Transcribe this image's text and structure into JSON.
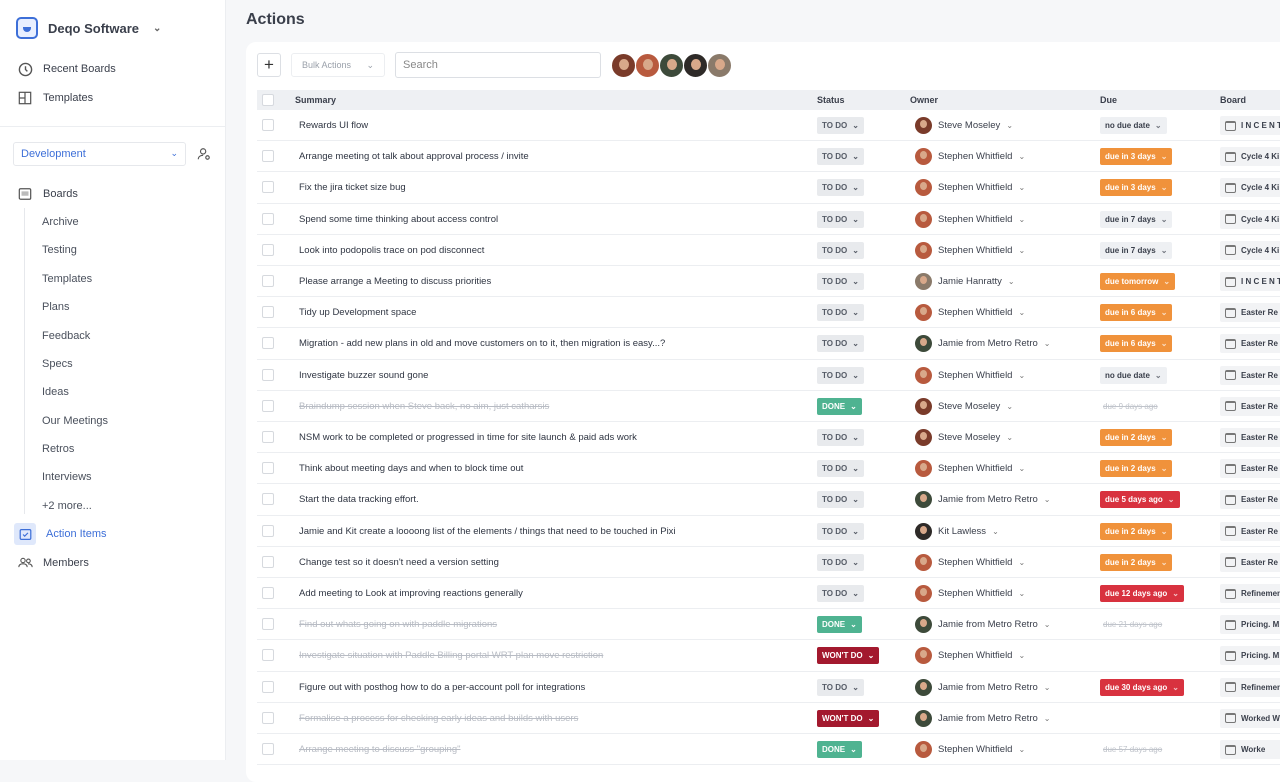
{
  "sidebar": {
    "workspace": "Deqo Software",
    "top_items": [
      {
        "label": "Recent Boards",
        "icon": "clock-icon"
      },
      {
        "label": "Templates",
        "icon": "layout-icon"
      }
    ],
    "team_select": "Development",
    "boards_label": "Boards",
    "board_items": [
      "Archive",
      "Testing",
      "Templates",
      "Plans",
      "Feedback",
      "Specs",
      "Ideas",
      "Our Meetings",
      "Retros",
      "Interviews",
      "+2 more..."
    ],
    "action_items": "Action Items",
    "members": "Members"
  },
  "page": {
    "title": "Actions"
  },
  "toolbar": {
    "add": "+",
    "bulk_actions": "Bulk Actions",
    "search_placeholder": "Search"
  },
  "columns": {
    "summary": "Summary",
    "status": "Status",
    "owner": "Owner",
    "due": "Due",
    "board": "Board"
  },
  "colors": {
    "accent": "#3d6fd8",
    "done": "#4fb391",
    "wont": "#a3192e",
    "due_soon": "#f0923b",
    "overdue": "#d8323f"
  },
  "rows": [
    {
      "summary": "Rewards UI flow",
      "status": "TO DO",
      "owner": "Steve Moseley",
      "due": "no due date",
      "due_type": "grey",
      "board": "I N C E N T",
      "done": false
    },
    {
      "summary": "Arrange meeting ot talk about approval process / invite",
      "status": "TO DO",
      "owner": "Stephen Whitfield",
      "due": "due in 3 days",
      "due_type": "orange",
      "board": "Cycle 4 Ki",
      "done": false
    },
    {
      "summary": "Fix the jira ticket size bug",
      "status": "TO DO",
      "owner": "Stephen Whitfield",
      "due": "due in 3 days",
      "due_type": "orange",
      "board": "Cycle 4 Ki",
      "done": false
    },
    {
      "summary": "Spend some time thinking about access control",
      "status": "TO DO",
      "owner": "Stephen Whitfield",
      "due": "due in 7 days",
      "due_type": "grey",
      "board": "Cycle 4 Ki",
      "done": false
    },
    {
      "summary": "Look into podopolis trace on pod disconnect",
      "status": "TO DO",
      "owner": "Stephen Whitfield",
      "due": "due in 7 days",
      "due_type": "grey",
      "board": "Cycle 4 Ki",
      "done": false
    },
    {
      "summary": "Please arrange a Meeting to discuss priorities",
      "status": "TO DO",
      "owner": "Jamie Hanratty",
      "due": "due tomorrow",
      "due_type": "orange",
      "board": "I N C E N T",
      "done": false
    },
    {
      "summary": "Tidy up Development space",
      "status": "TO DO",
      "owner": "Stephen Whitfield",
      "due": "due in 6 days",
      "due_type": "orange",
      "board": "Easter Re",
      "done": false
    },
    {
      "summary": "Migration - add new plans in old and move customers on to it, then migration is easy...?",
      "status": "TO DO",
      "owner": "Jamie from Metro Retro",
      "due": "due in 6 days",
      "due_type": "orange",
      "board": "Easter Re",
      "done": false
    },
    {
      "summary": "Investigate buzzer sound gone",
      "status": "TO DO",
      "owner": "Stephen Whitfield",
      "due": "no due date",
      "due_type": "grey",
      "board": "Easter Re",
      "done": false
    },
    {
      "summary": "Braindump session when Steve back, no aim, just catharsis",
      "status": "DONE",
      "owner": "Steve Moseley",
      "due": "due 9 days ago",
      "due_type": "struck",
      "board": "Easter Re",
      "done": true
    },
    {
      "summary": "NSM work to be completed or progressed in time for site launch & paid ads work",
      "status": "TO DO",
      "owner": "Steve Moseley",
      "due": "due in 2 days",
      "due_type": "orange",
      "board": "Easter Re",
      "done": false
    },
    {
      "summary": "Think about meeting days and when to block time out",
      "status": "TO DO",
      "owner": "Stephen Whitfield",
      "due": "due in 2 days",
      "due_type": "orange",
      "board": "Easter Re",
      "done": false
    },
    {
      "summary": "Start the data tracking effort.",
      "status": "TO DO",
      "owner": "Jamie from Metro Retro",
      "due": "due 5 days ago",
      "due_type": "red",
      "board": "Easter Re",
      "done": false
    },
    {
      "summary": "Jamie and Kit create a loooong list of the elements / things that need to be touched in Pixi",
      "status": "TO DO",
      "owner": "Kit Lawless",
      "due": "due in 2 days",
      "due_type": "orange",
      "board": "Easter Re",
      "done": false
    },
    {
      "summary": "Change test so it doesn't need a version setting",
      "status": "TO DO",
      "owner": "Stephen Whitfield",
      "due": "due in 2 days",
      "due_type": "orange",
      "board": "Easter Re",
      "done": false
    },
    {
      "summary": "Add meeting to Look at improving reactions generally",
      "status": "TO DO",
      "owner": "Stephen Whitfield",
      "due": "due 12 days ago",
      "due_type": "red",
      "board": "Refinemen",
      "done": false
    },
    {
      "summary": "Find out whats going on with paddle migrations",
      "status": "DONE",
      "owner": "Jamie from Metro Retro",
      "due": "due 21 days ago",
      "due_type": "struck",
      "board": "Pricing. M",
      "done": true
    },
    {
      "summary": "Investigate situation with Paddle Billing portal WRT plan move restriction",
      "status": "WON'T DO",
      "owner": "Stephen Whitfield",
      "due": "",
      "due_type": "none",
      "board": "Pricing. M",
      "done": true
    },
    {
      "summary": "Figure out with posthog how to do a per-account poll for integrations",
      "status": "TO DO",
      "owner": "Jamie from Metro Retro",
      "due": "due 30 days ago",
      "due_type": "red",
      "board": "Refinemen",
      "done": false
    },
    {
      "summary": "Formalise a process for checking early ideas and builds with users",
      "status": "WON'T DO",
      "owner": "Jamie from Metro Retro",
      "due": "",
      "due_type": "none",
      "board": "Worked W",
      "done": true
    },
    {
      "summary": "Arrange meeting to discuss \"grouping\"",
      "status": "DONE",
      "owner": "Stephen Whitfield",
      "due": "due 57 days ago",
      "due_type": "struck",
      "board": "Worke",
      "done": true
    }
  ]
}
